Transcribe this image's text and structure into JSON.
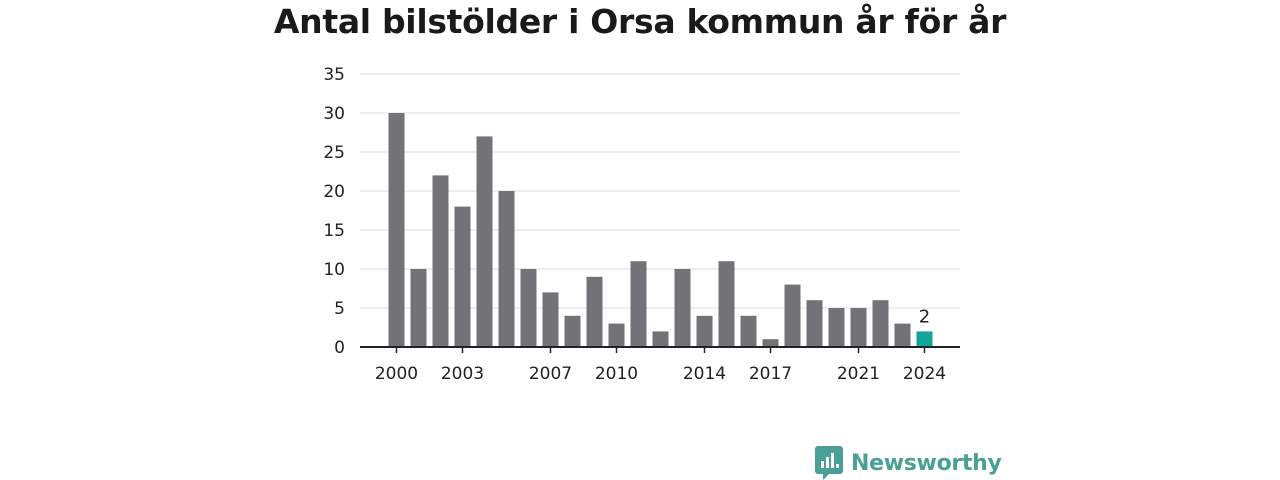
{
  "chart_data": {
    "type": "bar",
    "title": "Antal bilstölder i Orsa kommun år för år",
    "xlabel": "",
    "ylabel": "",
    "ylim": [
      0,
      35
    ],
    "yticks": [
      0,
      5,
      10,
      15,
      20,
      25,
      30,
      35
    ],
    "grid": true,
    "categories": [
      "2000",
      "2001",
      "2002",
      "2003",
      "2004",
      "2005",
      "2006",
      "2007",
      "2008",
      "2009",
      "2010",
      "2011",
      "2012",
      "2013",
      "2014",
      "2015",
      "2016",
      "2017",
      "2018",
      "2019",
      "2020",
      "2021",
      "2022",
      "2023",
      "2024"
    ],
    "xtick_labels": [
      "2000",
      "2003",
      "2007",
      "2010",
      "2014",
      "2017",
      "2021",
      "2024"
    ],
    "values": [
      30,
      10,
      22,
      18,
      27,
      20,
      10,
      7,
      4,
      9,
      3,
      11,
      2,
      10,
      4,
      11,
      4,
      1,
      8,
      6,
      5,
      5,
      6,
      3,
      2
    ],
    "highlight": {
      "category": "2024",
      "label": "2"
    },
    "colors": {
      "bar": "#737277",
      "highlight": "#14a59a",
      "grid": "#dcdcdc",
      "axis": "#222222"
    }
  },
  "brand": {
    "name": "Newsworthy",
    "icon": "newsworthy-logo-icon",
    "color": "#4a9f96"
  }
}
